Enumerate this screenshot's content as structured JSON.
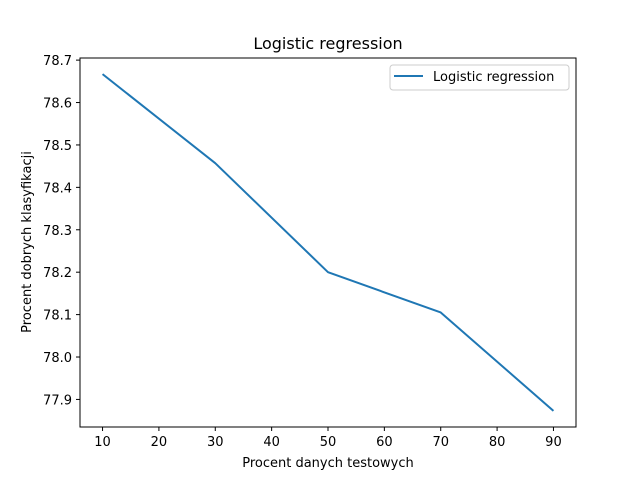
{
  "chart_data": {
    "type": "line",
    "title": "Logistic regression",
    "xlabel": "Procent danych testowych",
    "ylabel": "Procent dobrych klasyfikacji",
    "x": [
      10,
      30,
      50,
      70,
      90
    ],
    "series": [
      {
        "name": "Logistic regression",
        "values": [
          78.667,
          78.457,
          78.2,
          78.105,
          77.873
        ],
        "color": "#1f77b4"
      }
    ],
    "xlim": [
      6,
      94
    ],
    "ylim": [
      77.835,
      78.705
    ],
    "xticks": [
      10,
      20,
      30,
      40,
      50,
      60,
      70,
      80,
      90
    ],
    "xtick_labels": [
      "10",
      "20",
      "30",
      "40",
      "50",
      "60",
      "70",
      "80",
      "90"
    ],
    "yticks": [
      77.9,
      78.0,
      78.1,
      78.2,
      78.3,
      78.4,
      78.5,
      78.6,
      78.7
    ],
    "ytick_labels": [
      "77.9",
      "78.0",
      "78.1",
      "78.2",
      "78.3",
      "78.4",
      "78.5",
      "78.6",
      "78.7"
    ],
    "grid": false,
    "legend_position": "top-right"
  }
}
